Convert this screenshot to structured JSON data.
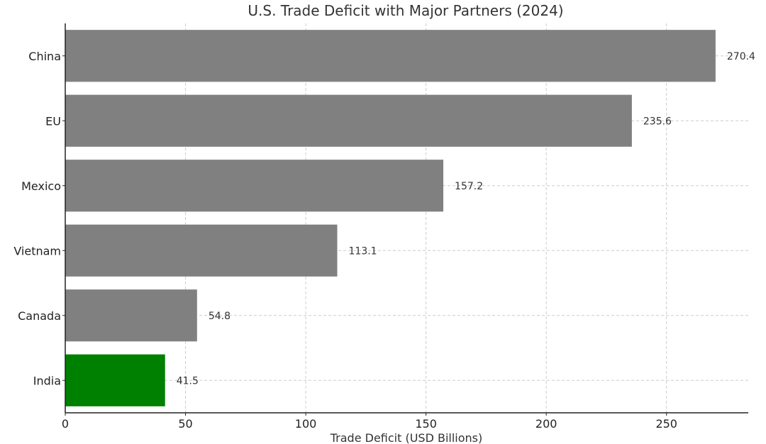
{
  "chart_data": {
    "type": "bar",
    "orientation": "horizontal",
    "title": "U.S. Trade Deficit with Major Partners (2024)",
    "xlabel": "Trade Deficit (USD Billions)",
    "ylabel": "",
    "categories": [
      "China",
      "EU",
      "Mexico",
      "Vietnam",
      "Canada",
      "India"
    ],
    "values": [
      270.4,
      235.6,
      157.2,
      113.1,
      54.8,
      41.5
    ],
    "value_labels": [
      "270.4",
      "235.6",
      "157.2",
      "113.1",
      "54.8",
      "41.5"
    ],
    "xlim": [
      0,
      284
    ],
    "xticks": [
      0,
      50,
      100,
      150,
      200,
      250
    ],
    "grid": true,
    "colors": {
      "default_bar": "#808080",
      "highlight_bar": "#008000"
    },
    "highlight_category": "India"
  }
}
